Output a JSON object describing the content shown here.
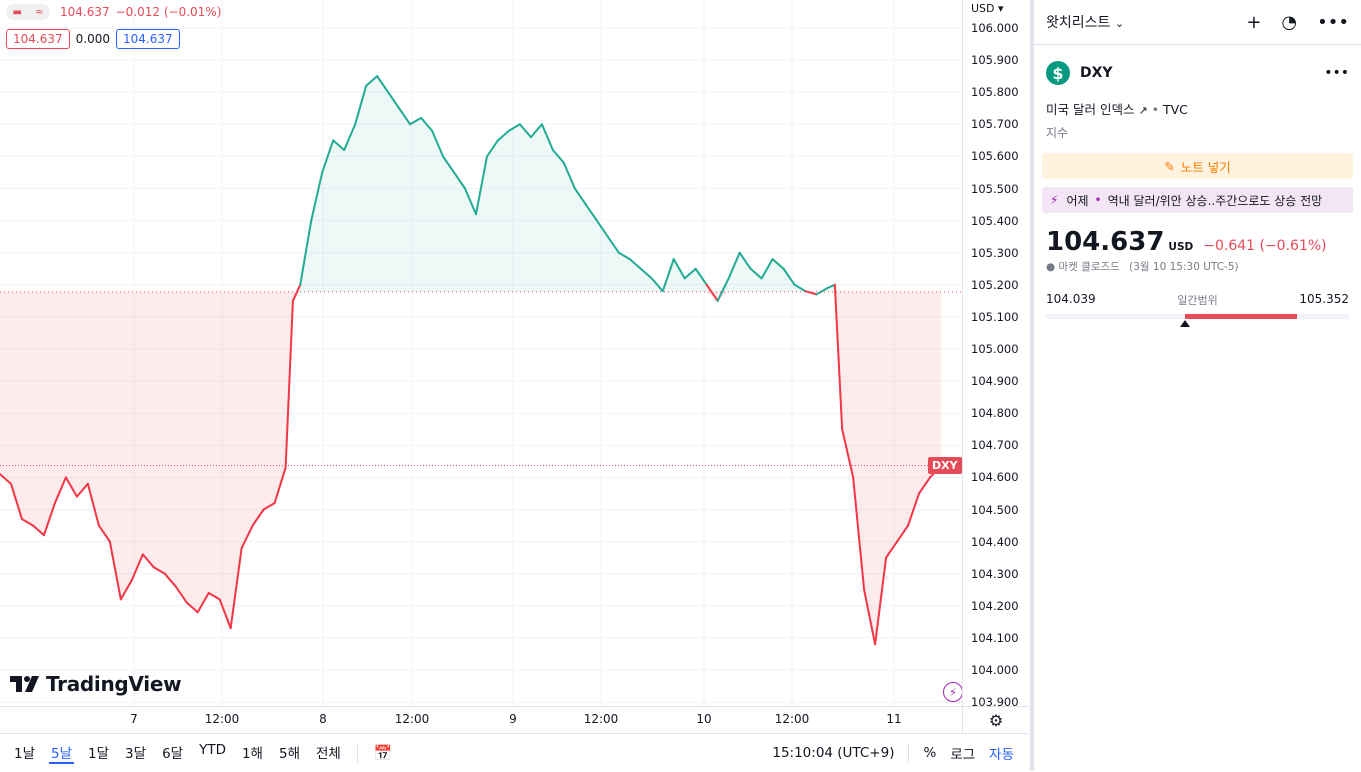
{
  "legend": {
    "pill_icon": "≈",
    "price": "104.637",
    "change": "−0.012 (−0.01%)",
    "box1": "104.637",
    "box2": "0.000",
    "box3": "104.637"
  },
  "logo": "TradingView",
  "price_axis": {
    "currency": "USD",
    "ticks": [
      "106.000",
      "105.900",
      "105.800",
      "105.700",
      "105.600",
      "105.500",
      "105.400",
      "105.300",
      "105.200",
      "105.100",
      "105.000",
      "104.900",
      "104.800",
      "104.700",
      "104.600",
      "104.500",
      "104.400",
      "104.300",
      "104.200",
      "104.100",
      "104.000",
      "103.900"
    ],
    "last_label": "DXY"
  },
  "time_axis": {
    "ticks": [
      "7",
      "12:00",
      "8",
      "12:00",
      "9",
      "12:00",
      "10",
      "12:00",
      "11"
    ]
  },
  "bottom_bar": {
    "ranges": [
      "1날",
      "5날",
      "1달",
      "3달",
      "6달",
      "YTD",
      "1해",
      "5해",
      "전체"
    ],
    "active_range": "5날",
    "clock": "15:10:04 (UTC+9)",
    "percent": "%",
    "log": "로그",
    "auto": "자동"
  },
  "watchlist": {
    "title": "왓치리스트",
    "symbol": "DXY",
    "description": "미국 달러 인덱스",
    "exchange": "TVC",
    "type": "지수",
    "note_button": "노트 넣기",
    "news_time": "어제",
    "news_text": "역내 달러/위안 상승..주간으로도 상승 전망",
    "price": "104.637",
    "currency": "USD",
    "change": "−0.641 (−0.61%)",
    "status": "마켓 클로즈드",
    "status_time": "(3월 10 15:30 UTC-5)",
    "range_low": "104.039",
    "range_label": "일간범위",
    "range_high": "105.352",
    "range_marker_fraction": 0.46,
    "range_fill": [
      0.46,
      0.83
    ]
  },
  "colors": {
    "up": "#22ab94",
    "down": "#f23645",
    "accent": "#2962ff"
  },
  "chart_data": {
    "type": "line",
    "symbol": "DXY",
    "x_labels": [
      "7",
      "12:00",
      "8",
      "12:00",
      "9",
      "12:00",
      "10",
      "12:00",
      "11"
    ],
    "baseline": 105.178,
    "ylim": [
      103.9,
      106.0
    ],
    "last": 104.637,
    "points": [
      [
        0,
        104.61
      ],
      [
        0.03,
        104.58
      ],
      [
        0.06,
        104.47
      ],
      [
        0.09,
        104.45
      ],
      [
        0.12,
        104.42
      ],
      [
        0.15,
        104.52
      ],
      [
        0.18,
        104.6
      ],
      [
        0.21,
        104.54
      ],
      [
        0.24,
        104.58
      ],
      [
        0.27,
        104.45
      ],
      [
        0.3,
        104.4
      ],
      [
        0.33,
        104.22
      ],
      [
        0.36,
        104.28
      ],
      [
        0.39,
        104.36
      ],
      [
        0.42,
        104.32
      ],
      [
        0.45,
        104.3
      ],
      [
        0.48,
        104.26
      ],
      [
        0.51,
        104.21
      ],
      [
        0.54,
        104.18
      ],
      [
        0.57,
        104.24
      ],
      [
        0.6,
        104.22
      ],
      [
        0.63,
        104.13
      ],
      [
        0.66,
        104.38
      ],
      [
        0.69,
        104.45
      ],
      [
        0.72,
        104.5
      ],
      [
        0.75,
        104.52
      ],
      [
        0.78,
        104.63
      ],
      [
        0.8,
        105.15
      ],
      [
        0.82,
        105.2
      ],
      [
        0.85,
        105.4
      ],
      [
        0.88,
        105.55
      ],
      [
        0.91,
        105.65
      ],
      [
        0.94,
        105.62
      ],
      [
        0.97,
        105.7
      ],
      [
        1.0,
        105.82
      ],
      [
        1.03,
        105.85
      ],
      [
        1.06,
        105.8
      ],
      [
        1.09,
        105.75
      ],
      [
        1.12,
        105.7
      ],
      [
        1.15,
        105.72
      ],
      [
        1.18,
        105.68
      ],
      [
        1.21,
        105.6
      ],
      [
        1.24,
        105.55
      ],
      [
        1.27,
        105.5
      ],
      [
        1.3,
        105.42
      ],
      [
        1.33,
        105.6
      ],
      [
        1.36,
        105.65
      ],
      [
        1.39,
        105.68
      ],
      [
        1.42,
        105.7
      ],
      [
        1.45,
        105.66
      ],
      [
        1.48,
        105.7
      ],
      [
        1.51,
        105.62
      ],
      [
        1.54,
        105.58
      ],
      [
        1.57,
        105.5
      ],
      [
        1.6,
        105.45
      ],
      [
        1.63,
        105.4
      ],
      [
        1.66,
        105.35
      ],
      [
        1.69,
        105.3
      ],
      [
        1.72,
        105.28
      ],
      [
        1.75,
        105.25
      ],
      [
        1.78,
        105.22
      ],
      [
        1.81,
        105.18
      ],
      [
        1.84,
        105.28
      ],
      [
        1.87,
        105.22
      ],
      [
        1.9,
        105.25
      ],
      [
        1.93,
        105.2
      ],
      [
        1.96,
        105.15
      ],
      [
        1.99,
        105.22
      ],
      [
        2.02,
        105.3
      ],
      [
        2.05,
        105.25
      ],
      [
        2.08,
        105.22
      ],
      [
        2.11,
        105.28
      ],
      [
        2.14,
        105.25
      ],
      [
        2.17,
        105.2
      ],
      [
        2.2,
        105.18
      ],
      [
        2.23,
        105.17
      ],
      [
        2.26,
        105.19
      ],
      [
        2.28,
        105.2
      ],
      [
        2.3,
        104.75
      ],
      [
        2.33,
        104.6
      ],
      [
        2.36,
        104.25
      ],
      [
        2.39,
        104.08
      ],
      [
        2.42,
        104.35
      ],
      [
        2.45,
        104.4
      ],
      [
        2.48,
        104.45
      ],
      [
        2.51,
        104.55
      ],
      [
        2.54,
        104.6
      ],
      [
        2.57,
        104.637
      ]
    ]
  }
}
